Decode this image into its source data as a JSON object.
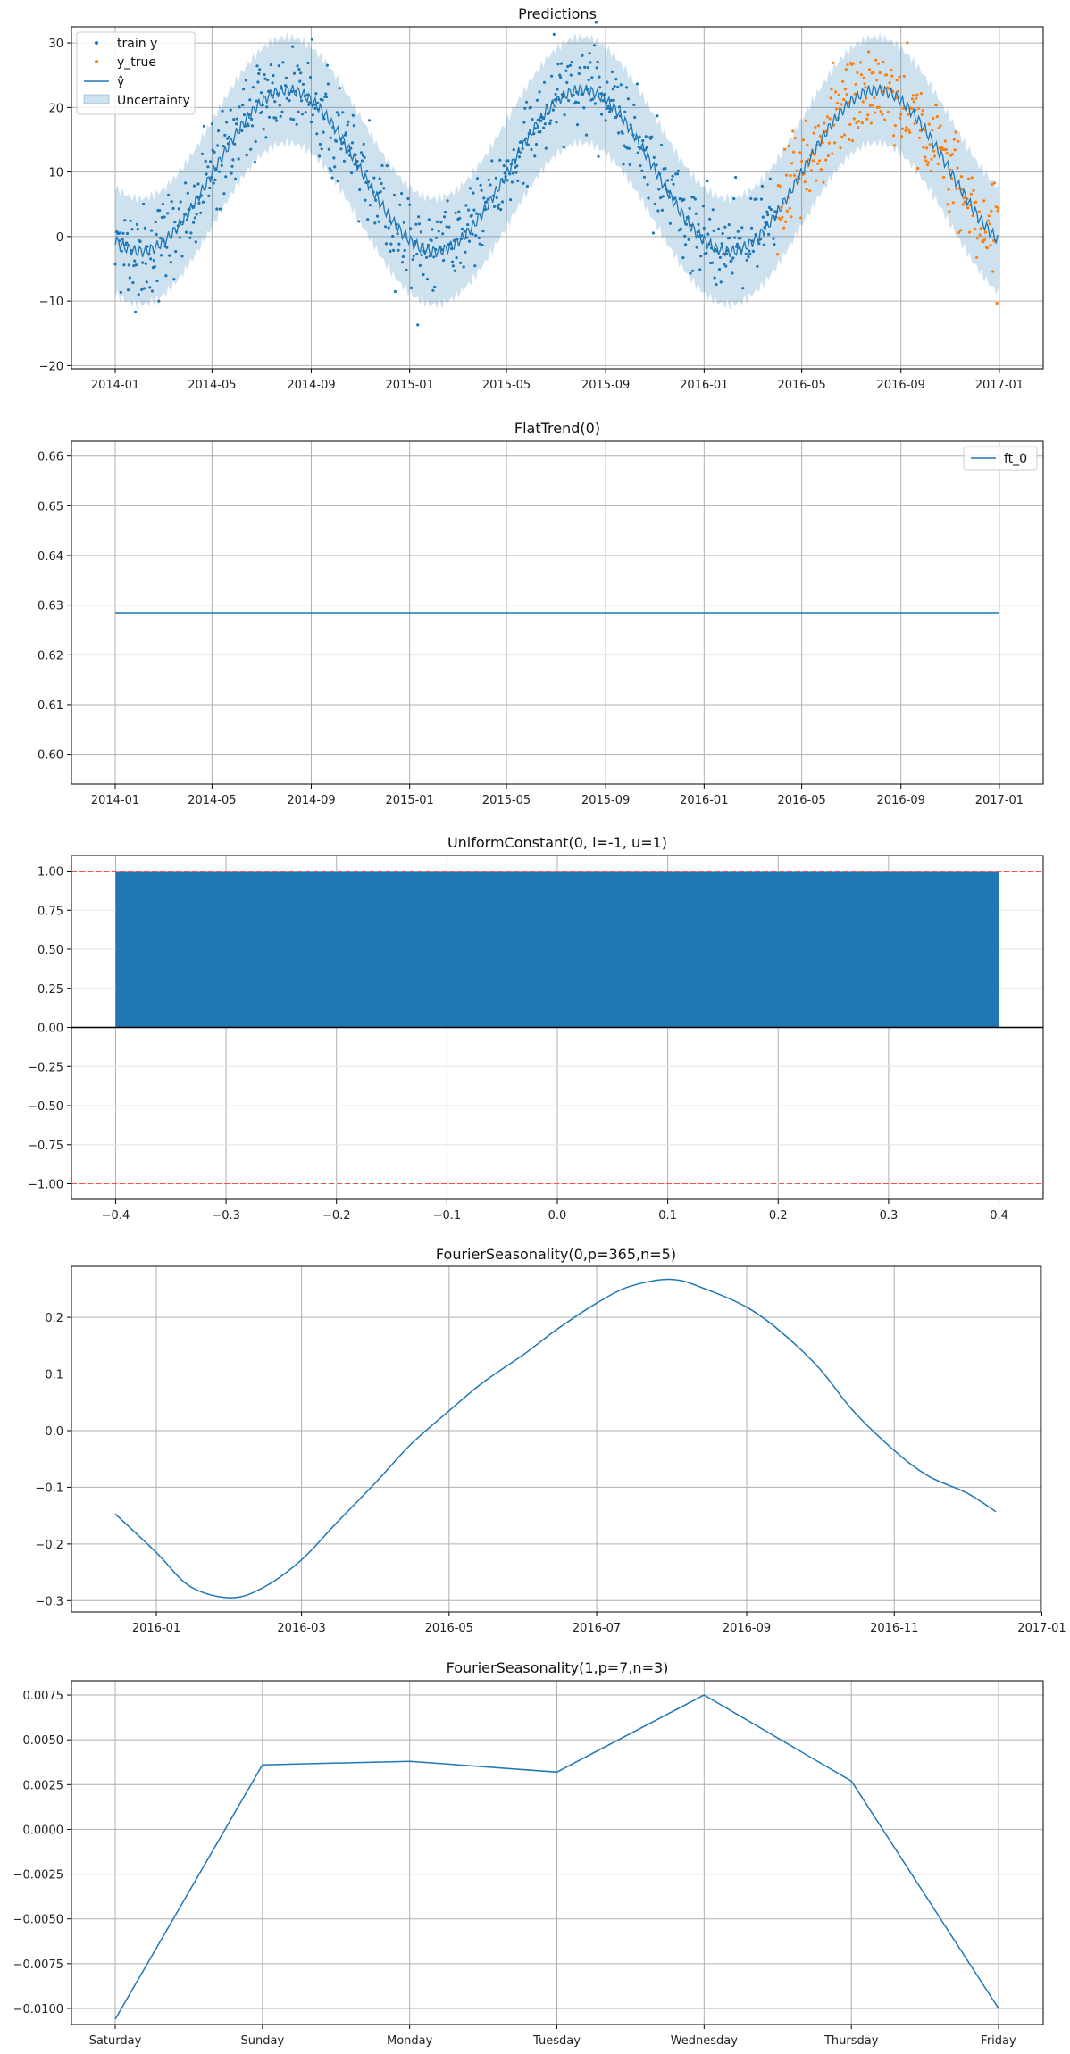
{
  "colors": {
    "blue": "#1f77b4",
    "orange": "#ff7f0e",
    "band": "#1f77b4",
    "grid": "#b0b0b0",
    "refline": "#ff4d4d"
  },
  "chart_data": [
    {
      "type": "line",
      "title": "Predictions",
      "x_ticks": [
        "2014-01",
        "2014-05",
        "2014-09",
        "2015-01",
        "2015-05",
        "2015-09",
        "2016-01",
        "2016-05",
        "2016-09",
        "2017-01"
      ],
      "y_ticks": [
        "30",
        "20",
        "10",
        "0",
        "−10",
        "−20"
      ],
      "ylim": [
        -20.5,
        32.5
      ],
      "x_start": "2014-01-01",
      "x_end": "2016-12-31",
      "train_end": "2016-03-31",
      "series": [
        {
          "name": "train y",
          "kind": "scatter",
          "color": "#1f77b4",
          "range": [
            "2014-01-01",
            "2016-03-31"
          ]
        },
        {
          "name": "y_true",
          "kind": "scatter",
          "color": "#ff7f0e",
          "range": [
            "2016-04-01",
            "2016-12-31"
          ]
        },
        {
          "name": "ŷ",
          "kind": "line",
          "color": "#1f77b4",
          "model": {
            "mean": 10.2,
            "amplitude": 12.5,
            "period_days": 365,
            "min_date": "2014-02-01"
          }
        },
        {
          "name": "Uncertainty",
          "kind": "band",
          "color": "#1f77b4",
          "half_width": 8.2
        }
      ],
      "legend": [
        "train y",
        "y_true",
        "ŷ",
        "Uncertainty"
      ],
      "legend_position": "upper-left",
      "grid": true
    },
    {
      "type": "line",
      "title": "FlatTrend(0)",
      "x_ticks": [
        "2014-01",
        "2014-05",
        "2014-09",
        "2015-01",
        "2015-05",
        "2015-09",
        "2016-01",
        "2016-05",
        "2016-09",
        "2017-01"
      ],
      "y_ticks": [
        "0.66",
        "0.65",
        "0.64",
        "0.63",
        "0.62",
        "0.61",
        "0.60"
      ],
      "ylim": [
        0.594,
        0.663
      ],
      "series": [
        {
          "name": "ft_0",
          "values": [
            0.6285,
            0.6285
          ]
        }
      ],
      "legend": [
        "ft_0"
      ],
      "legend_position": "upper-right",
      "grid": true
    },
    {
      "type": "bar",
      "title": "UniformConstant(0, l=-1, u=1)",
      "x_ticks": [
        "−0.4",
        "−0.3",
        "−0.2",
        "−0.1",
        "0.0",
        "0.1",
        "0.2",
        "0.3",
        "0.4"
      ],
      "y_ticks": [
        "1.00",
        "0.75",
        "0.50",
        "0.25",
        "0.00",
        "−0.25",
        "−0.50",
        "−0.75",
        "−1.00"
      ],
      "xlim": [
        -0.44,
        0.44
      ],
      "ylim": [
        -1.1,
        1.1
      ],
      "bar": {
        "x_from": -0.4,
        "x_to": 0.4,
        "value": 1.0
      },
      "reference_lines": [
        1.0,
        -1.0
      ],
      "grid": true
    },
    {
      "type": "line",
      "title": "FourierSeasonality(0,p=365,n=5)",
      "x_ticks": [
        "2016-01",
        "2016-03",
        "2016-05",
        "2016-07",
        "2016-09",
        "2016-11",
        "2017-01"
      ],
      "y_ticks": [
        "0.2",
        "0.1",
        "0.0",
        "−0.1",
        "−0.2",
        "−0.3"
      ],
      "ylim": [
        -0.32,
        0.29
      ],
      "x": [
        "2015-12-15",
        "2016-01-01",
        "2016-01-15",
        "2016-02-01",
        "2016-02-15",
        "2016-03-01",
        "2016-03-15",
        "2016-04-01",
        "2016-04-15",
        "2016-05-01",
        "2016-05-15",
        "2016-06-01",
        "2016-06-15",
        "2016-07-01",
        "2016-07-15",
        "2016-08-01",
        "2016-08-15",
        "2016-09-01",
        "2016-09-15",
        "2016-10-01",
        "2016-10-15",
        "2016-11-01",
        "2016-11-15",
        "2016-12-01",
        "2016-12-13"
      ],
      "values": [
        -0.147,
        -0.215,
        -0.275,
        -0.295,
        -0.275,
        -0.228,
        -0.165,
        -0.09,
        -0.025,
        0.035,
        0.085,
        0.135,
        0.18,
        0.225,
        0.255,
        0.267,
        0.25,
        0.218,
        0.175,
        0.11,
        0.035,
        -0.035,
        -0.08,
        -0.11,
        -0.143
      ],
      "grid": true
    },
    {
      "type": "line",
      "title": "FourierSeasonality(1,p=7,n=3)",
      "categories": [
        "Saturday",
        "Sunday",
        "Monday",
        "Tuesday",
        "Wednesday",
        "Thursday",
        "Friday"
      ],
      "values": [
        -0.0106,
        0.0036,
        0.0038,
        0.0032,
        0.0075,
        0.0027,
        -0.01
      ],
      "y_ticks": [
        "0.0075",
        "0.0050",
        "0.0025",
        "0.0000",
        "−0.0025",
        "−0.0050",
        "−0.0075",
        "−0.0100"
      ],
      "ylim": [
        -0.0109,
        0.0083
      ],
      "grid": true
    }
  ]
}
